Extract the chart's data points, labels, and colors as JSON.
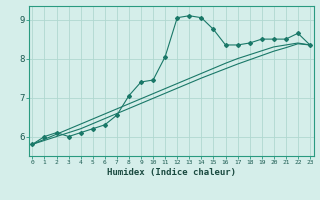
{
  "title": "",
  "xlabel": "Humidex (Indice chaleur)",
  "ylabel": "",
  "bg_color": "#d5eeea",
  "grid_color": "#b0d8d0",
  "line_color": "#1a7868",
  "x_data": [
    0,
    1,
    2,
    3,
    4,
    5,
    6,
    7,
    8,
    9,
    10,
    11,
    12,
    13,
    14,
    15,
    16,
    17,
    18,
    19,
    20,
    21,
    22,
    23
  ],
  "y_main": [
    5.8,
    6.0,
    6.1,
    6.0,
    6.1,
    6.2,
    6.3,
    6.55,
    7.05,
    7.4,
    7.45,
    8.05,
    9.05,
    9.1,
    9.05,
    8.75,
    8.35,
    8.35,
    8.4,
    8.5,
    8.5,
    8.5,
    8.65,
    8.35
  ],
  "y_line1": [
    5.8,
    5.93,
    6.06,
    6.19,
    6.32,
    6.45,
    6.58,
    6.71,
    6.84,
    6.97,
    7.1,
    7.23,
    7.36,
    7.49,
    7.62,
    7.75,
    7.88,
    8.0,
    8.1,
    8.2,
    8.3,
    8.35,
    8.4,
    8.35
  ],
  "y_line2": [
    5.8,
    5.9,
    6.0,
    6.1,
    6.2,
    6.33,
    6.46,
    6.59,
    6.72,
    6.85,
    6.98,
    7.11,
    7.24,
    7.37,
    7.5,
    7.62,
    7.74,
    7.86,
    7.97,
    8.08,
    8.19,
    8.28,
    8.38,
    8.35
  ],
  "yticks": [
    6,
    7,
    8,
    9
  ],
  "xticks": [
    0,
    1,
    2,
    3,
    4,
    5,
    6,
    7,
    8,
    9,
    10,
    11,
    12,
    13,
    14,
    15,
    16,
    17,
    18,
    19,
    20,
    21,
    22,
    23
  ],
  "ylim": [
    5.5,
    9.35
  ],
  "xlim": [
    -0.3,
    23.3
  ]
}
